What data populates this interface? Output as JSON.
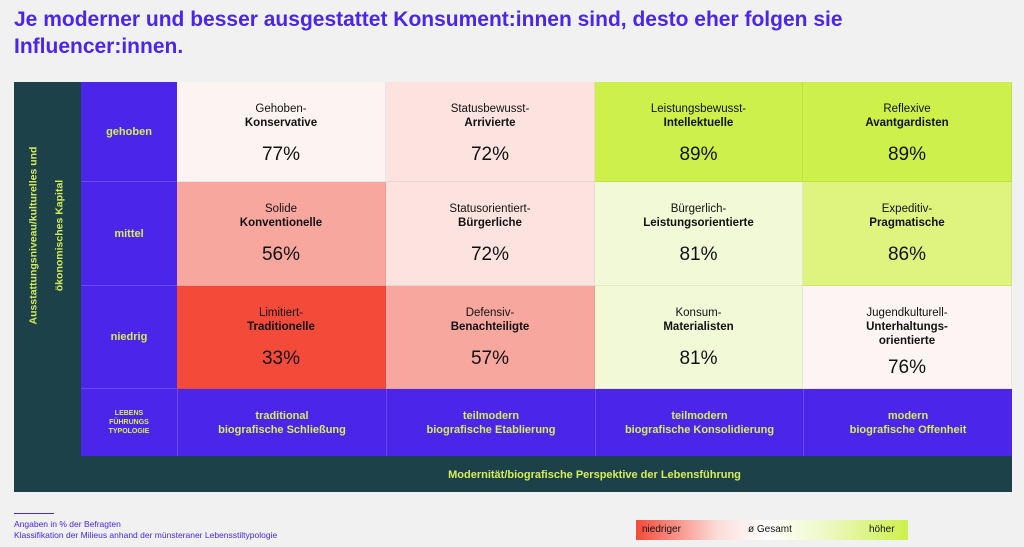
{
  "title": "Je moderner und besser ausgestattet Konsument:innen sind, desto eher folgen sie Influencer:innen.",
  "y_axis_label_line1": "Ausstattungsniveau/kulturelles und",
  "y_axis_label_line2": "ökonomisches Kapital",
  "x_axis_label": "Modernität/biografische Perspektive der Lebensführung",
  "rows": [
    "gehoben",
    "mittel",
    "niedrig"
  ],
  "typology_label_lines": [
    "LEBENS",
    "FÜHRUNGS",
    "TYPOLOGIE"
  ],
  "columns": [
    {
      "line1": "traditional",
      "line2": "biografische Schließung"
    },
    {
      "line1": "teilmodern",
      "line2": "biografische Etablierung"
    },
    {
      "line1": "teilmodern",
      "line2": "biografische Konsolidierung"
    },
    {
      "line1": "modern",
      "line2": "biografische Offenheit"
    }
  ],
  "cells": [
    [
      {
        "l1": "Gehoben-",
        "l2": "Konservative",
        "l3": "",
        "value": "77%",
        "color": "#fdf3f2"
      },
      {
        "l1": "Statusbewusst-",
        "l2": "Arrivierte",
        "l3": "",
        "value": "72%",
        "color": "#fde3e0"
      },
      {
        "l1": "Leistungsbewusst-",
        "l2": "Intellektuelle",
        "l3": "",
        "value": "89%",
        "color": "#cdf04a"
      },
      {
        "l1": "Reflexive",
        "l2": "Avantgardisten",
        "l3": "",
        "value": "89%",
        "color": "#cdf04a"
      }
    ],
    [
      {
        "l1": "Solide",
        "l2": "Konventionelle",
        "l3": "",
        "value": "56%",
        "color": "#f8a79e"
      },
      {
        "l1": "Statusorientiert-",
        "l2": "Bürgerliche",
        "l3": "",
        "value": "72%",
        "color": "#fde3e0"
      },
      {
        "l1": "Bürgerlich-",
        "l2": "Leistungsorientierte",
        "l3": "",
        "value": "81%",
        "color": "#f2f9d6"
      },
      {
        "l1": "Expeditiv-",
        "l2": "Pragmatische",
        "l3": "",
        "value": "86%",
        "color": "#def47f"
      }
    ],
    [
      {
        "l1": "Limitiert-",
        "l2": "Traditionelle",
        "l3": "",
        "value": "33%",
        "color": "#f44a3a"
      },
      {
        "l1": "Defensiv-",
        "l2": "Benachteiligte",
        "l3": "",
        "value": "57%",
        "color": "#f8a79e"
      },
      {
        "l1": "Konsum-",
        "l2": "Materialisten",
        "l3": "",
        "value": "81%",
        "color": "#f2f9d6"
      },
      {
        "l1": "Jugendkulturell-",
        "l2": "Unterhaltungs-",
        "l3": "orientierte",
        "value": "76%",
        "color": "#fdf5f3"
      }
    ]
  ],
  "chart_data": {
    "type": "heatmap",
    "title": "Je moderner und besser ausgestattet Konsument:innen sind, desto eher folgen sie Influencer:innen.",
    "xlabel": "Modernität/biografische Perspektive der Lebensführung",
    "ylabel": "Ausstattungsniveau/kulturelles und ökonomisches Kapital",
    "x_categories": [
      "traditional biografische Schließung",
      "teilmodern biografische Etablierung",
      "teilmodern biografische Konsolidierung",
      "modern biografische Offenheit"
    ],
    "y_categories": [
      "gehoben",
      "mittel",
      "niedrig"
    ],
    "values": [
      [
        77,
        72,
        89,
        89
      ],
      [
        56,
        72,
        81,
        86
      ],
      [
        33,
        57,
        81,
        76
      ]
    ],
    "unit": "%"
  },
  "footnote_line1": "Angaben in % der Befragten",
  "footnote_line2": "Klassifikation der Milieus anhand der münsteraner Lebensstiltypologie",
  "legend": {
    "low": "niedriger",
    "mid": "ø Gesamt",
    "high": "höher"
  },
  "colors": {
    "accent_purple": "#4b25ea",
    "dark_teal": "#1d4149",
    "lime": "#d6ee5a",
    "low_red": "#f44a3a",
    "high_green": "#cdf04a"
  }
}
